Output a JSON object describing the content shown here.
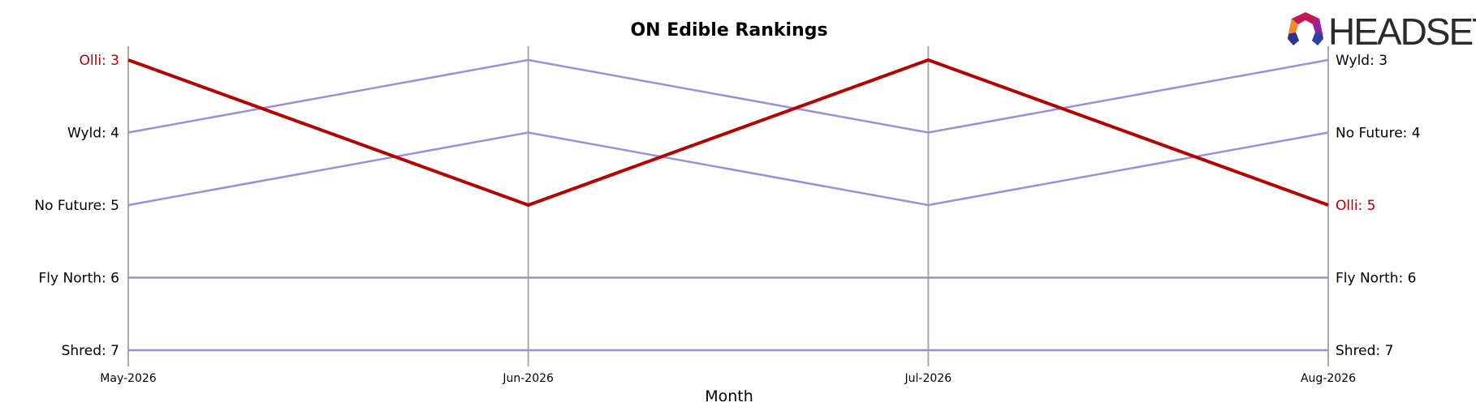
{
  "chart_data": {
    "type": "line",
    "title": "ON Edible Rankings",
    "xlabel": "Month",
    "ylabel": "",
    "categories": [
      "May-2026",
      "Jun-2026",
      "Jul-2026",
      "Aug-2026"
    ],
    "ylim": [
      7,
      3
    ],
    "y_inverted": true,
    "grid": "vertical lines at each month",
    "colors": {
      "highlight": "#b30000",
      "other": "#9b8fd8",
      "axis": "#aaaaaa"
    },
    "highlight_series": "Olli",
    "series": [
      {
        "name": "Olli",
        "values": [
          3,
          5,
          3,
          5
        ]
      },
      {
        "name": "Wyld",
        "values": [
          4,
          3,
          4,
          3
        ]
      },
      {
        "name": "No Future",
        "values": [
          5,
          4,
          5,
          4
        ]
      },
      {
        "name": "Fly North",
        "values": [
          6,
          6,
          6,
          6
        ]
      },
      {
        "name": "Shred",
        "values": [
          7,
          7,
          7,
          7
        ]
      }
    ],
    "left_labels": [
      "Olli: 3",
      "Wyld: 4",
      "No Future: 5",
      "Fly North: 6",
      "Shred: 7"
    ],
    "right_labels": [
      "Wyld: 3",
      "No Future: 4",
      "Olli: 5",
      "Fly North: 6",
      "Shred: 7"
    ]
  },
  "logo": {
    "text": "HEADSET",
    "icon": "headset-logo-icon"
  }
}
